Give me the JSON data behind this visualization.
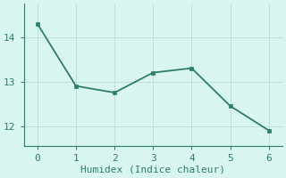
{
  "x": [
    0,
    1,
    2,
    3,
    4,
    5,
    6
  ],
  "y": [
    14.3,
    12.9,
    12.75,
    13.2,
    13.3,
    12.45,
    11.9
  ],
  "line_color": "#2d7d6e",
  "marker_color": "#2d7d6e",
  "background_color": "#d8f5ef",
  "grid_color": "#b8ddd8",
  "spine_color": "#2d7d6e",
  "tick_color": "#2d7d6e",
  "label_color": "#2d7d6e",
  "xlabel": "Humidex (Indice chaleur)",
  "xlim": [
    -0.35,
    6.35
  ],
  "ylim": [
    11.55,
    14.75
  ],
  "yticks": [
    12,
    13,
    14
  ],
  "xticks": [
    0,
    1,
    2,
    3,
    4,
    5,
    6
  ],
  "font_family": "monospace",
  "font_size": 8,
  "label_font_size": 8,
  "line_width": 1.3,
  "marker_size": 3
}
